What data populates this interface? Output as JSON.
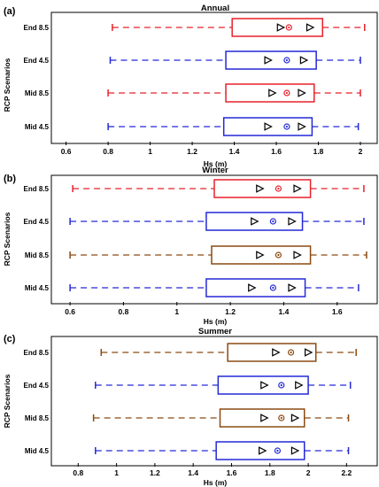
{
  "figure": {
    "ylabel": "RCP Scenarios",
    "xlabel": "Hs (m)"
  },
  "chart_data": [
    {
      "type": "box",
      "panel_label": "(a)",
      "title": "Annual",
      "xlabel": "Hs (m)",
      "ylabel": "RCP Scenarios",
      "xlim": [
        0.53,
        2.08
      ],
      "xticks": [
        0.6,
        0.8,
        1,
        1.2,
        1.4,
        1.6,
        1.8,
        2
      ],
      "xtick_labels": [
        "0.6",
        "0.8",
        "1",
        "1.2",
        "1.4",
        "1.6",
        "1.8",
        "2"
      ],
      "categories": [
        "End 8.5",
        "End 4.5",
        "Mid 8.5",
        "Mid 4.5"
      ],
      "series": [
        {
          "label": "End 8.5",
          "color": "#e8212b",
          "min": 0.82,
          "q1": 1.39,
          "mean_left": 1.62,
          "median": 1.66,
          "mean_right": 1.76,
          "q3": 1.82,
          "max": 2.02
        },
        {
          "label": "End 4.5",
          "color": "#2429d6",
          "min": 0.81,
          "q1": 1.36,
          "mean_left": 1.56,
          "median": 1.65,
          "mean_right": 1.73,
          "q3": 1.79,
          "max": 2.0
        },
        {
          "label": "Mid 8.5",
          "color": "#e8212b",
          "min": 0.8,
          "q1": 1.36,
          "mean_left": 1.58,
          "median": 1.65,
          "mean_right": 1.72,
          "q3": 1.78,
          "max": 2.0
        },
        {
          "label": "Mid 4.5",
          "color": "#2429d6",
          "min": 0.8,
          "q1": 1.35,
          "mean_left": 1.56,
          "median": 1.65,
          "mean_right": 1.72,
          "q3": 1.77,
          "max": 1.99
        }
      ]
    },
    {
      "type": "box",
      "panel_label": "(b)",
      "title": "Winter",
      "xlabel": "Hs (m)",
      "ylabel": "RCP Scenarios",
      "xlim": [
        0.53,
        1.75
      ],
      "xticks": [
        0.6,
        0.8,
        1,
        1.2,
        1.4,
        1.6
      ],
      "xtick_labels": [
        "0.6",
        "0.8",
        "1",
        "1.2",
        "1.4",
        "1.6"
      ],
      "categories": [
        "End 8.5",
        "End 4.5",
        "Mid 8.5",
        "Mid 4.5"
      ],
      "series": [
        {
          "label": "End 8.5",
          "color": "#e8212b",
          "min": 0.61,
          "q1": 1.14,
          "mean_left": 1.31,
          "median": 1.38,
          "mean_right": 1.45,
          "q3": 1.5,
          "max": 1.7
        },
        {
          "label": "End 4.5",
          "color": "#2429d6",
          "min": 0.6,
          "q1": 1.11,
          "mean_left": 1.29,
          "median": 1.36,
          "mean_right": 1.43,
          "q3": 1.47,
          "max": 1.7
        },
        {
          "label": "Mid 8.5",
          "color": "#8b4a12",
          "min": 0.6,
          "q1": 1.13,
          "mean_left": 1.31,
          "median": 1.38,
          "mean_right": 1.45,
          "q3": 1.5,
          "max": 1.71
        },
        {
          "label": "Mid 4.5",
          "color": "#2429d6",
          "min": 0.6,
          "q1": 1.11,
          "mean_left": 1.28,
          "median": 1.36,
          "mean_right": 1.43,
          "q3": 1.48,
          "max": 1.68
        }
      ]
    },
    {
      "type": "box",
      "panel_label": "(c)",
      "title": "Summer",
      "xlabel": "Hs (m)",
      "ylabel": "RCP Scenarios",
      "xlim": [
        0.66,
        2.36
      ],
      "xticks": [
        0.8,
        1,
        1.2,
        1.4,
        1.6,
        1.8,
        2,
        2.2
      ],
      "xtick_labels": [
        "0.8",
        "1",
        "1.2",
        "1.4",
        "1.6",
        "1.8",
        "2",
        "2.2"
      ],
      "categories": [
        "End 8.5",
        "End 4.5",
        "Mid 8.5",
        "Mid 4.5"
      ],
      "series": [
        {
          "label": "End 8.5",
          "color": "#8b4a12",
          "min": 0.92,
          "q1": 1.58,
          "mean_left": 1.83,
          "median": 1.91,
          "mean_right": 2.0,
          "q3": 2.04,
          "max": 2.25
        },
        {
          "label": "End 4.5",
          "color": "#2429d6",
          "min": 0.89,
          "q1": 1.53,
          "mean_left": 1.77,
          "median": 1.86,
          "mean_right": 1.95,
          "q3": 2.0,
          "max": 2.22
        },
        {
          "label": "Mid 8.5",
          "color": "#8b4a12",
          "min": 0.88,
          "q1": 1.54,
          "mean_left": 1.77,
          "median": 1.86,
          "mean_right": 1.93,
          "q3": 1.98,
          "max": 2.21
        },
        {
          "label": "Mid 4.5",
          "color": "#2429d6",
          "min": 0.89,
          "q1": 1.52,
          "mean_left": 1.76,
          "median": 1.84,
          "mean_right": 1.93,
          "q3": 1.98,
          "max": 2.21
        }
      ]
    }
  ]
}
